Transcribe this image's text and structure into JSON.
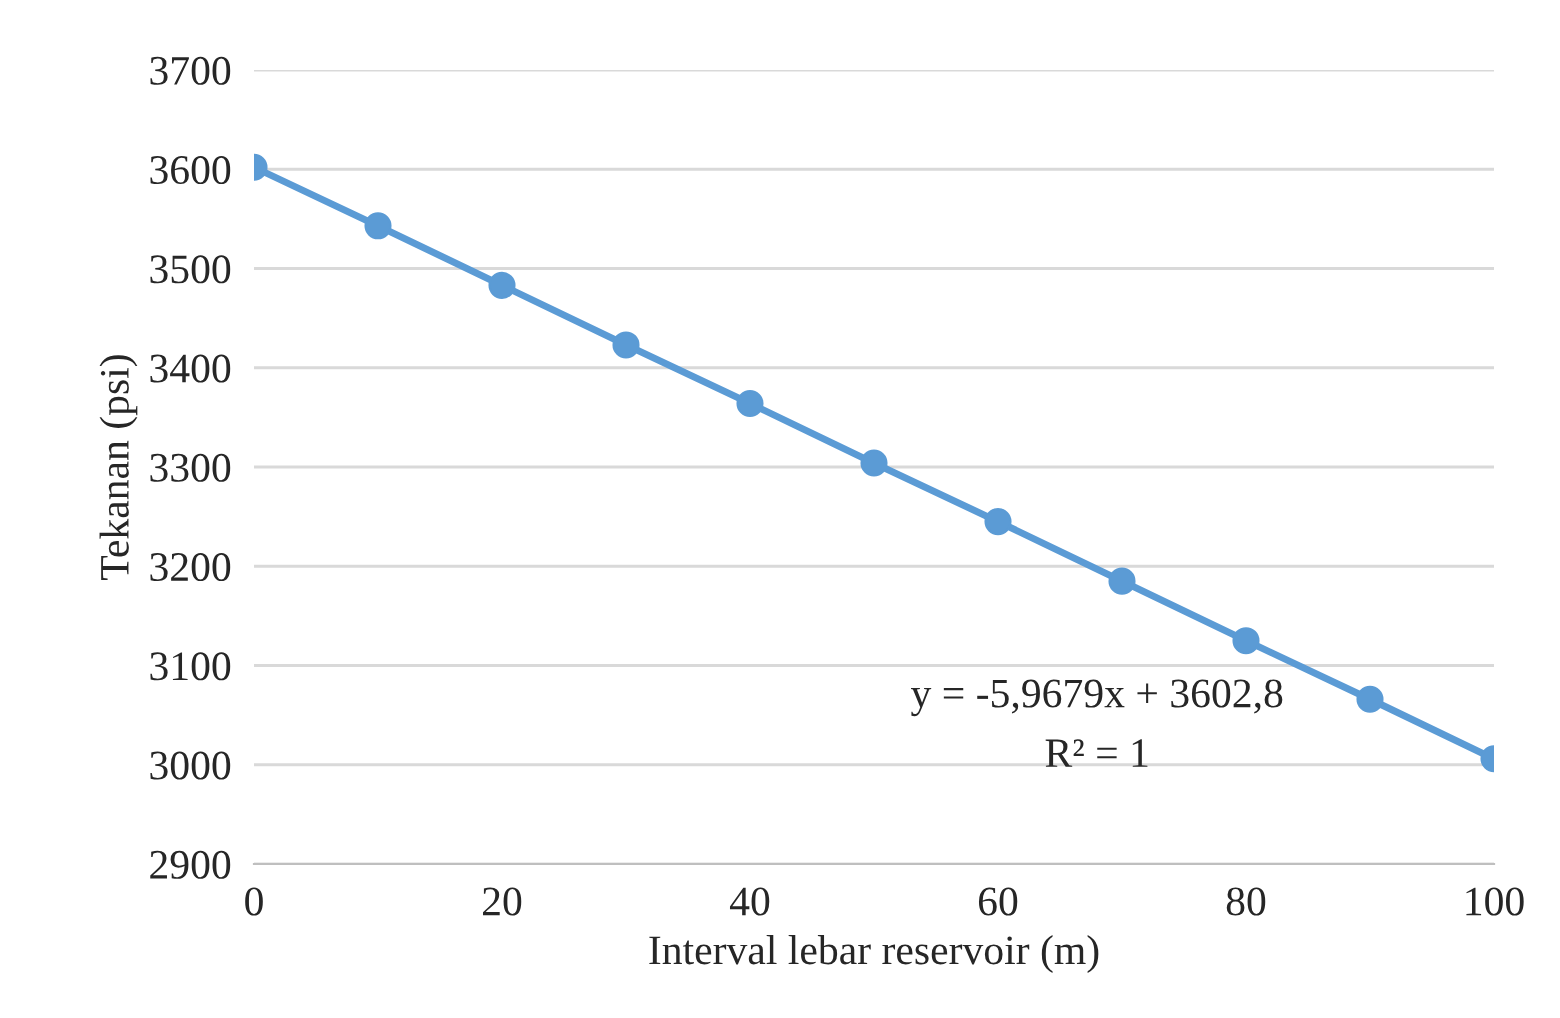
{
  "chart_data": {
    "type": "line",
    "xlabel": "Interval lebar reservoir (m)",
    "ylabel": "Tekanan (psi)",
    "x": [
      0,
      10,
      20,
      30,
      40,
      50,
      60,
      70,
      80,
      90,
      100
    ],
    "series": [
      {
        "color": "#5b9bd5",
        "values": [
          3602,
          3543,
          3483,
          3423,
          3364,
          3304,
          3245,
          3185,
          3125,
          3066,
          3006
        ]
      }
    ],
    "xlim": [
      0,
      100
    ],
    "xticks": [
      0,
      20,
      40,
      60,
      80,
      100
    ],
    "ylim": [
      2900,
      3700
    ],
    "yticks": [
      2900,
      3000,
      3100,
      3200,
      3300,
      3400,
      3500,
      3600,
      3700
    ],
    "grid": "y",
    "marker": "circle",
    "line_style": "solid",
    "legend": false,
    "annotations": [
      "y = -5,9679x + 3602,8",
      "R² = 1"
    ]
  }
}
